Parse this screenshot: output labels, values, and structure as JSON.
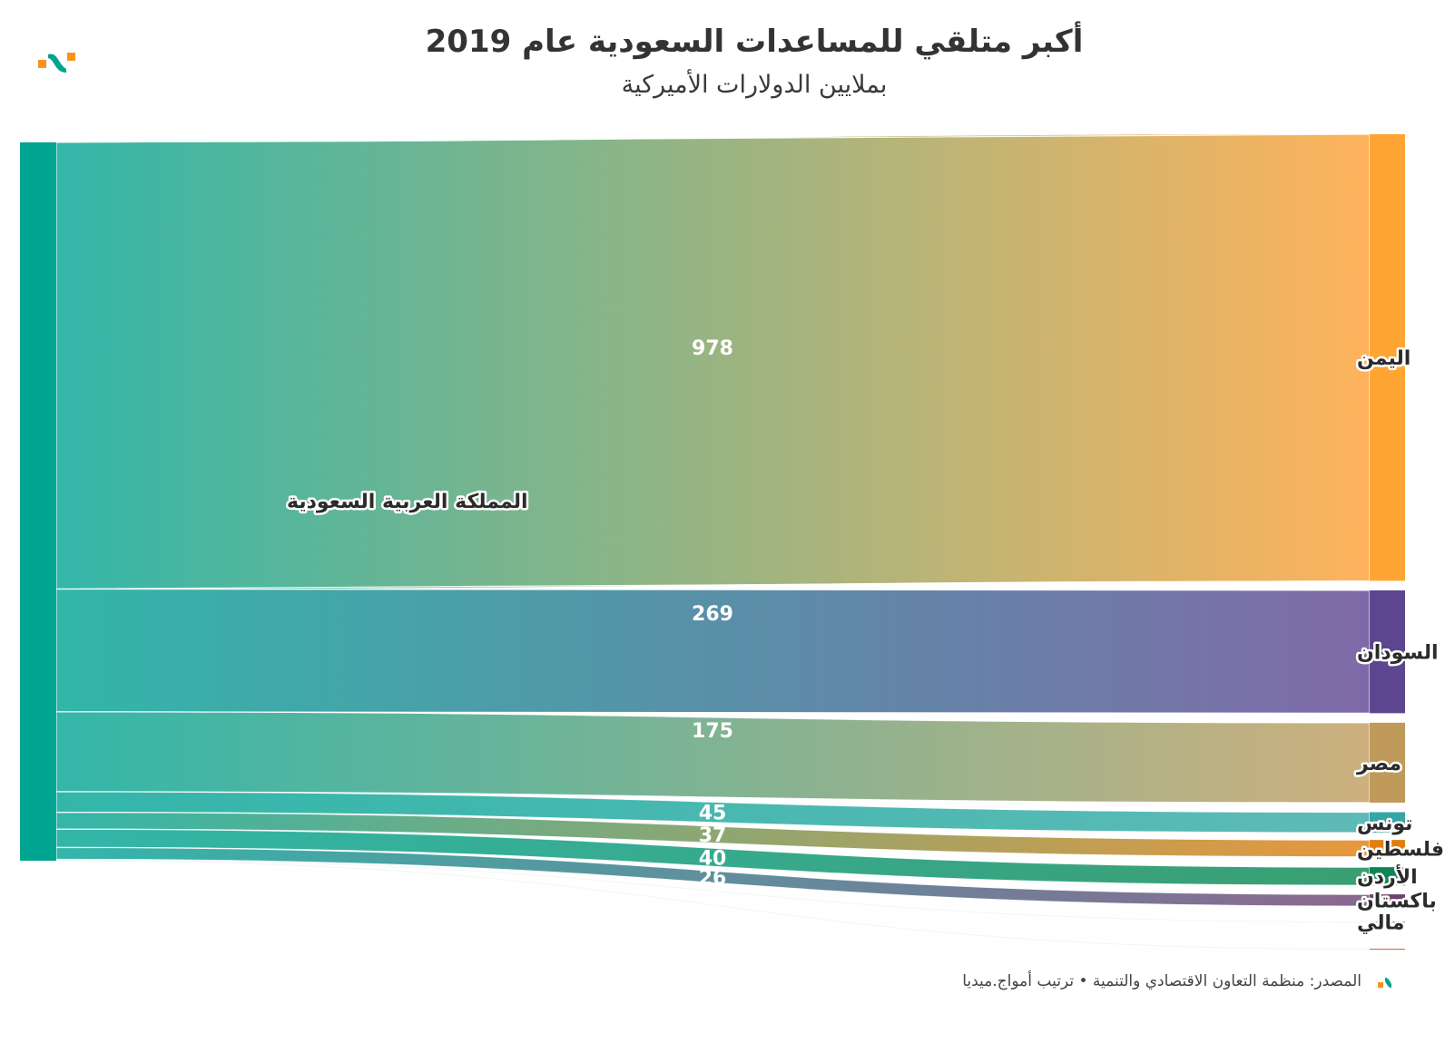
{
  "header": {
    "title": "أكبر متلقي للمساعدات السعودية عام 2019",
    "subtitle": "بملايين الدولارات الأميركية"
  },
  "logo": {
    "name": "amwaj-media-logo",
    "colors": {
      "accent": "#f7941d",
      "brand": "#00a38d"
    }
  },
  "footer": {
    "source_text": "المصدر: منظمة التعاون الاقتصادي والتنمية • ترتيب أمواج.ميديا"
  },
  "chart_data": {
    "type": "sankey",
    "title": "أكبر متلقي للمساعدات السعودية عام 2019",
    "subtitle": "بملايين الدولارات الأميركية",
    "unit": "million USD",
    "source": {
      "name": "المملكة العربية السعودية",
      "color": "#00a591"
    },
    "links": [
      {
        "target": "اليمن",
        "value": 978,
        "value_label": "978",
        "color": "#ffa534",
        "flow_end_color": "#ffb35c"
      },
      {
        "target": "السودان",
        "value": 269,
        "value_label": "269",
        "color": "#5d468f",
        "flow_end_color": "#7f6aa8"
      },
      {
        "target": "مصر",
        "value": 175,
        "value_label": "175",
        "color": "#c09a5a",
        "flow_end_color": "#cdb07e"
      },
      {
        "target": "تونس",
        "value": 45,
        "value_label": "45",
        "color": "#35a6a3",
        "flow_end_color": "#5ebab7"
      },
      {
        "target": "فلسطين",
        "value": 37,
        "value_label": "37",
        "color": "#e07f0f",
        "flow_end_color": "#e8973b"
      },
      {
        "target": "الأردن",
        "value": 40,
        "value_label": "40",
        "color": "#0e8653",
        "flow_end_color": "#3a9e72"
      },
      {
        "target": "باكستان",
        "value": 26,
        "value_label": "26",
        "color": "#6e3f72",
        "flow_end_color": "#8c6790"
      },
      {
        "target": "مالي",
        "value": 2,
        "value_label": "2",
        "color": "#a16ab5",
        "flow_end_color": "#b58ac4"
      },
      {
        "target": "",
        "value": 1,
        "value_label": "1",
        "color": "#c8573f",
        "flow_end_color": "#d0735e"
      }
    ]
  }
}
